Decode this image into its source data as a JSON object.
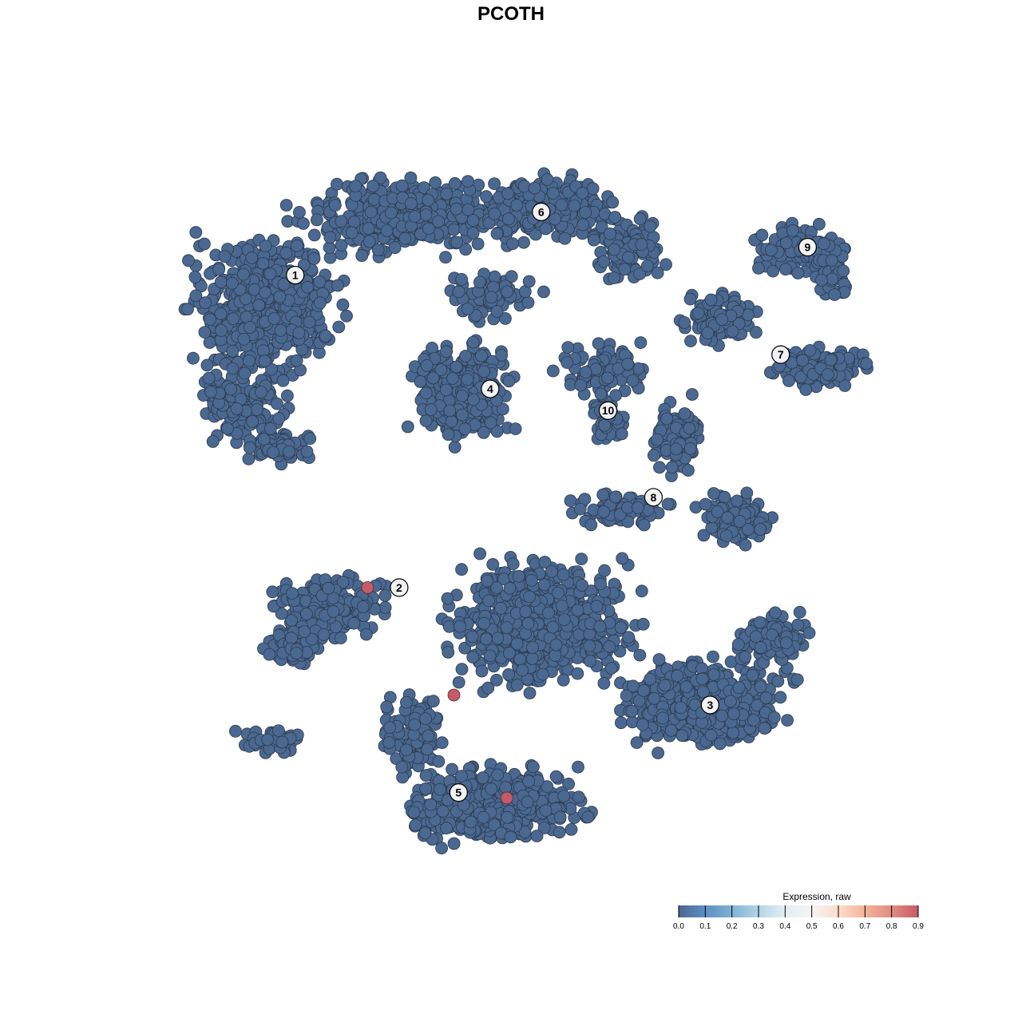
{
  "chart_data": {
    "type": "scatter",
    "title": "PCOTH",
    "xlabel": "",
    "ylabel": "",
    "grid": false,
    "axes_visible": false,
    "default_expression": 0.0,
    "point_fill_low": "#4a6890",
    "point_fill_high": "#c65a66",
    "clusters": [
      {
        "label": "1",
        "x": -25.4,
        "y": 25.9
      },
      {
        "label": "6",
        "x": 1.1,
        "y": 32.9
      },
      {
        "label": "9",
        "x": 29.8,
        "y": 29.0
      },
      {
        "label": "7",
        "x": 26.9,
        "y": 17.1
      },
      {
        "label": "4",
        "x": -4.4,
        "y": 13.3
      },
      {
        "label": "10",
        "x": 8.3,
        "y": 10.9
      },
      {
        "label": "8",
        "x": 13.2,
        "y": 1.3
      },
      {
        "label": "2",
        "x": -14.2,
        "y": -8.7
      },
      {
        "label": "3",
        "x": 19.3,
        "y": -21.7
      },
      {
        "label": "5",
        "x": -7.8,
        "y": -31.4
      }
    ],
    "expressing_points": [
      {
        "x": -17.6,
        "y": -8.7,
        "value": 0.9
      },
      {
        "x": -8.3,
        "y": -20.6,
        "value": 0.9
      },
      {
        "x": -2.6,
        "y": -32.0,
        "value": 0.9
      }
    ],
    "legend": {
      "title": "Expression, raw",
      "placement": "bottom-right",
      "range": [
        0.0,
        0.9
      ],
      "ticks": [
        "0.0",
        "0.1",
        "0.2",
        "0.3",
        "0.4",
        "0.5",
        "0.6",
        "0.7",
        "0.8",
        "0.9"
      ],
      "colors": [
        "#4b6791",
        "#5d8fc2",
        "#7fb3d5",
        "#b3d4e5",
        "#e3eef5",
        "#f7f4f2",
        "#fbdccb",
        "#f4b49a",
        "#e08c82",
        "#c65a66"
      ]
    }
  }
}
